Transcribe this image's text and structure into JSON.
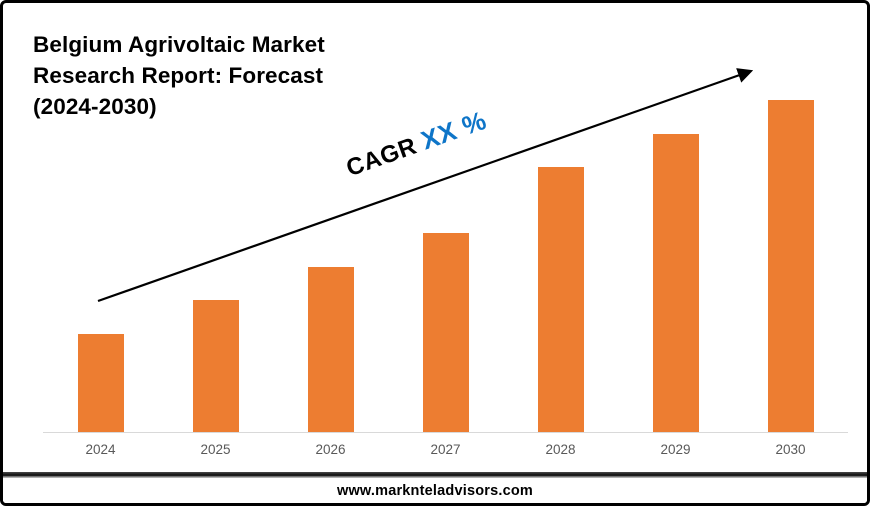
{
  "title": {
    "line1": "Belgium Agrivoltaic Market",
    "line2": "Research Report: Forecast",
    "line3": "(2024-2030)"
  },
  "annotation": {
    "cagr_label": "CAGR",
    "cagr_value": "XX %"
  },
  "chart_data": {
    "type": "bar",
    "title": "Belgium Agrivoltaic Market Research Report: Forecast (2024-2030)",
    "categories": [
      "2024",
      "2025",
      "2026",
      "2027",
      "2028",
      "2029",
      "2030"
    ],
    "values": [
      29.5,
      39.8,
      49.7,
      59.9,
      79.8,
      89.8,
      100
    ],
    "values_note": "relative bar heights, 2030 = 100; no y-axis values shown in chart",
    "xlabel": "",
    "ylabel": "",
    "grid": false,
    "legend": false,
    "annotations": [
      "CAGR XX %",
      "upward trend arrow across bars"
    ],
    "bar_color": "#ED7D31",
    "accent_blue": "#0E75C8",
    "axis_line_color": "#D9D9D9",
    "tick_label_color": "#595959"
  },
  "footer": {
    "website": "www.marknteladvisors.com"
  }
}
